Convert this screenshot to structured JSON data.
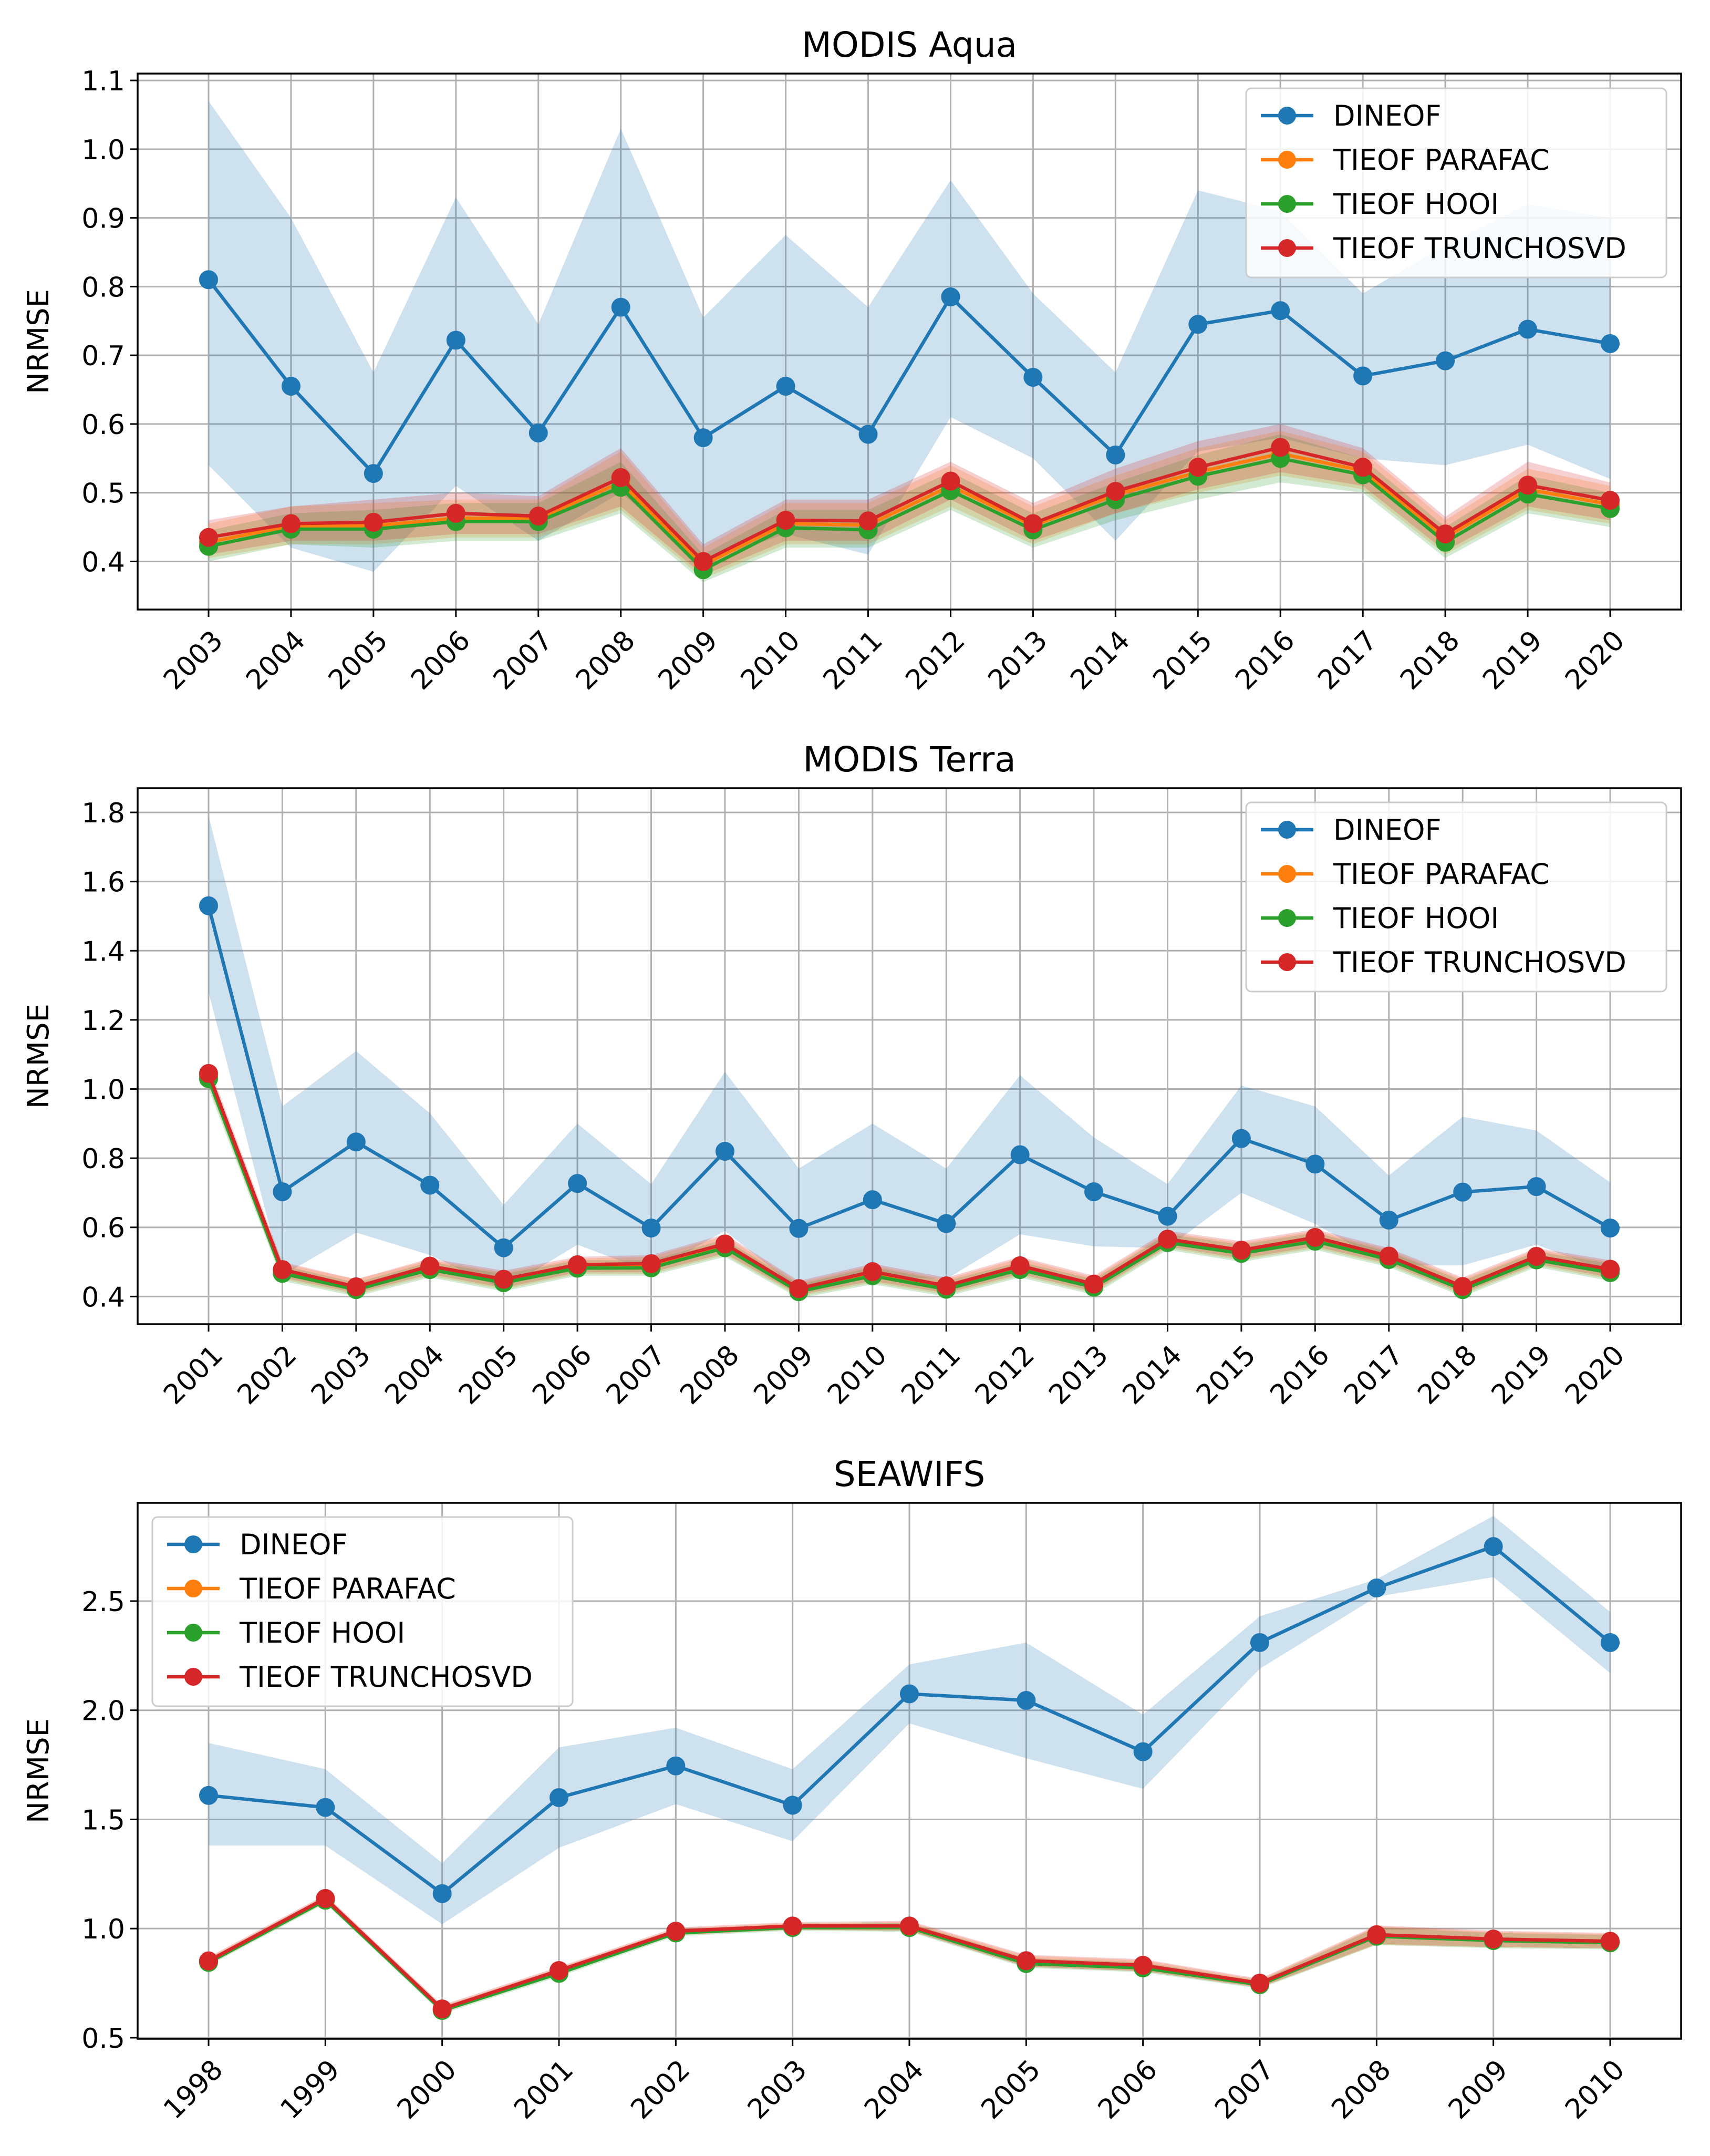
{
  "chart_data": [
    {
      "type": "line",
      "title": "MODIS Aqua",
      "xlabel": "",
      "ylabel": "NRMSE",
      "ylim": [
        0.33,
        1.11
      ],
      "yticks": [
        0.4,
        0.5,
        0.6,
        0.7,
        0.8,
        0.9,
        1.0,
        1.1
      ],
      "grid": true,
      "legend_position": "top-right",
      "categories": [
        "2003",
        "2004",
        "2005",
        "2006",
        "2007",
        "2008",
        "2009",
        "2010",
        "2011",
        "2012",
        "2013",
        "2014",
        "2015",
        "2016",
        "2017",
        "2018",
        "2019",
        "2020"
      ],
      "series": [
        {
          "name": "DINEOF",
          "color": "#1f77b4",
          "values": [
            0.81,
            0.655,
            0.528,
            0.722,
            0.587,
            0.77,
            0.58,
            0.655,
            0.585,
            0.785,
            0.668,
            0.555,
            0.745,
            0.765,
            0.67,
            0.692,
            0.738,
            0.717
          ],
          "band_low": [
            0.54,
            0.42,
            0.385,
            0.51,
            0.43,
            0.5,
            0.4,
            0.44,
            0.41,
            0.61,
            0.55,
            0.43,
            0.56,
            0.58,
            0.55,
            0.54,
            0.57,
            0.52
          ],
          "band_high": [
            1.07,
            0.9,
            0.675,
            0.93,
            0.745,
            1.03,
            0.755,
            0.875,
            0.77,
            0.955,
            0.79,
            0.675,
            0.94,
            0.91,
            0.79,
            0.86,
            0.92,
            0.9
          ]
        },
        {
          "name": "TIEOF PARAFAC",
          "color": "#ff7f0e",
          "values": [
            0.428,
            0.452,
            0.452,
            0.463,
            0.463,
            0.515,
            0.395,
            0.455,
            0.453,
            0.51,
            0.452,
            0.497,
            0.53,
            0.557,
            0.532,
            0.435,
            0.505,
            0.483
          ],
          "band_low": [
            0.405,
            0.425,
            0.425,
            0.435,
            0.435,
            0.475,
            0.375,
            0.425,
            0.425,
            0.48,
            0.425,
            0.47,
            0.5,
            0.525,
            0.505,
            0.41,
            0.475,
            0.455
          ],
          "band_high": [
            0.455,
            0.48,
            0.485,
            0.49,
            0.49,
            0.56,
            0.42,
            0.485,
            0.485,
            0.54,
            0.48,
            0.525,
            0.565,
            0.59,
            0.56,
            0.46,
            0.535,
            0.51
          ]
        },
        {
          "name": "TIEOF HOOI",
          "color": "#2ca02c",
          "values": [
            0.422,
            0.447,
            0.447,
            0.458,
            0.458,
            0.508,
            0.388,
            0.449,
            0.446,
            0.503,
            0.446,
            0.49,
            0.524,
            0.55,
            0.526,
            0.428,
            0.498,
            0.477
          ],
          "band_low": [
            0.4,
            0.425,
            0.42,
            0.43,
            0.43,
            0.47,
            0.37,
            0.42,
            0.42,
            0.475,
            0.42,
            0.46,
            0.49,
            0.515,
            0.5,
            0.405,
            0.47,
            0.45
          ],
          "band_high": [
            0.445,
            0.47,
            0.475,
            0.485,
            0.485,
            0.545,
            0.41,
            0.475,
            0.475,
            0.53,
            0.47,
            0.515,
            0.555,
            0.585,
            0.55,
            0.45,
            0.525,
            0.5
          ]
        },
        {
          "name": "TIEOF TRUNCHOSVD",
          "color": "#d62728",
          "values": [
            0.435,
            0.455,
            0.457,
            0.47,
            0.466,
            0.522,
            0.4,
            0.46,
            0.459,
            0.517,
            0.455,
            0.502,
            0.537,
            0.566,
            0.537,
            0.44,
            0.511,
            0.489
          ],
          "band_low": [
            0.41,
            0.43,
            0.43,
            0.44,
            0.44,
            0.48,
            0.38,
            0.43,
            0.43,
            0.49,
            0.43,
            0.47,
            0.505,
            0.53,
            0.51,
            0.415,
            0.48,
            0.46
          ],
          "band_high": [
            0.46,
            0.48,
            0.49,
            0.5,
            0.495,
            0.565,
            0.425,
            0.49,
            0.49,
            0.545,
            0.485,
            0.535,
            0.575,
            0.6,
            0.565,
            0.465,
            0.545,
            0.515
          ]
        }
      ]
    },
    {
      "type": "line",
      "title": "MODIS Terra",
      "xlabel": "",
      "ylabel": "NRMSE",
      "ylim": [
        0.32,
        1.87
      ],
      "yticks": [
        0.4,
        0.6,
        0.8,
        1.0,
        1.2,
        1.4,
        1.6,
        1.8
      ],
      "grid": true,
      "legend_position": "top-right",
      "categories": [
        "2001",
        "2002",
        "2003",
        "2004",
        "2005",
        "2006",
        "2007",
        "2008",
        "2009",
        "2010",
        "2011",
        "2012",
        "2013",
        "2014",
        "2015",
        "2016",
        "2017",
        "2018",
        "2019",
        "2020"
      ],
      "series": [
        {
          "name": "DINEOF",
          "color": "#1f77b4",
          "values": [
            1.53,
            0.703,
            0.847,
            0.722,
            0.541,
            0.727,
            0.598,
            0.82,
            0.597,
            0.68,
            0.611,
            0.81,
            0.703,
            0.632,
            0.857,
            0.783,
            0.621,
            0.702,
            0.718,
            0.598
          ],
          "band_low": [
            1.28,
            0.46,
            0.585,
            0.52,
            0.42,
            0.55,
            0.47,
            0.59,
            0.42,
            0.46,
            0.45,
            0.58,
            0.545,
            0.54,
            0.7,
            0.61,
            0.49,
            0.49,
            0.55,
            0.47
          ],
          "band_high": [
            1.79,
            0.95,
            1.11,
            0.93,
            0.665,
            0.9,
            0.725,
            1.05,
            0.77,
            0.9,
            0.77,
            1.04,
            0.86,
            0.725,
            1.01,
            0.95,
            0.75,
            0.92,
            0.88,
            0.73
          ]
        },
        {
          "name": "TIEOF PARAFAC",
          "color": "#ff7f0e",
          "values": [
            1.035,
            0.473,
            0.425,
            0.483,
            0.445,
            0.488,
            0.49,
            0.548,
            0.42,
            0.467,
            0.427,
            0.485,
            0.432,
            0.562,
            0.53,
            0.567,
            0.513,
            0.425,
            0.512,
            0.475
          ],
          "band_low": [
            1.01,
            0.45,
            0.405,
            0.46,
            0.42,
            0.465,
            0.465,
            0.52,
            0.4,
            0.44,
            0.405,
            0.46,
            0.41,
            0.54,
            0.505,
            0.54,
            0.49,
            0.405,
            0.49,
            0.45
          ],
          "band_high": [
            1.06,
            0.495,
            0.45,
            0.505,
            0.47,
            0.51,
            0.515,
            0.575,
            0.44,
            0.49,
            0.45,
            0.51,
            0.455,
            0.585,
            0.555,
            0.59,
            0.535,
            0.45,
            0.535,
            0.5
          ]
        },
        {
          "name": "TIEOF HOOI",
          "color": "#2ca02c",
          "values": [
            1.03,
            0.467,
            0.42,
            0.478,
            0.44,
            0.482,
            0.483,
            0.541,
            0.414,
            0.46,
            0.421,
            0.478,
            0.427,
            0.556,
            0.525,
            0.56,
            0.507,
            0.42,
            0.506,
            0.469
          ],
          "band_low": [
            1.0,
            0.445,
            0.4,
            0.455,
            0.415,
            0.46,
            0.46,
            0.515,
            0.395,
            0.435,
            0.4,
            0.455,
            0.405,
            0.535,
            0.5,
            0.535,
            0.485,
            0.4,
            0.485,
            0.445
          ],
          "band_high": [
            1.055,
            0.49,
            0.44,
            0.5,
            0.465,
            0.505,
            0.505,
            0.565,
            0.435,
            0.485,
            0.445,
            0.5,
            0.45,
            0.58,
            0.55,
            0.585,
            0.53,
            0.445,
            0.53,
            0.495
          ]
        },
        {
          "name": "TIEOF TRUNCHOSVD",
          "color": "#d62728",
          "values": [
            1.045,
            0.478,
            0.428,
            0.488,
            0.45,
            0.492,
            0.495,
            0.552,
            0.423,
            0.472,
            0.431,
            0.489,
            0.436,
            0.566,
            0.534,
            0.571,
            0.517,
            0.429,
            0.516,
            0.479
          ],
          "band_low": [
            1.02,
            0.455,
            0.41,
            0.465,
            0.425,
            0.47,
            0.47,
            0.525,
            0.405,
            0.445,
            0.41,
            0.465,
            0.415,
            0.545,
            0.51,
            0.545,
            0.495,
            0.41,
            0.495,
            0.455
          ],
          "band_high": [
            1.07,
            0.5,
            0.45,
            0.51,
            0.475,
            0.515,
            0.52,
            0.58,
            0.445,
            0.495,
            0.455,
            0.515,
            0.46,
            0.59,
            0.56,
            0.595,
            0.54,
            0.455,
            0.54,
            0.505
          ]
        }
      ]
    },
    {
      "type": "line",
      "title": "SEAWIFS",
      "xlabel": "",
      "ylabel": "NRMSE",
      "ylim": [
        0.495,
        2.95
      ],
      "yticks": [
        0.5,
        1.0,
        1.5,
        2.0,
        2.5
      ],
      "yticklabels": [
        "0.5",
        "1.0",
        "1.5",
        "2.0",
        "2.5"
      ],
      "grid": true,
      "legend_position": "top-left",
      "categories": [
        "1998",
        "1999",
        "2000",
        "2001",
        "2002",
        "2003",
        "2004",
        "2005",
        "2006",
        "2007",
        "2008",
        "2009",
        "2010"
      ],
      "series": [
        {
          "name": "DINEOF",
          "color": "#1f77b4",
          "values": [
            1.61,
            1.555,
            1.16,
            1.6,
            1.745,
            1.565,
            2.075,
            2.045,
            1.81,
            2.31,
            2.56,
            2.75,
            2.31
          ],
          "band_low": [
            1.38,
            1.38,
            1.02,
            1.37,
            1.57,
            1.4,
            1.94,
            1.78,
            1.64,
            2.19,
            2.52,
            2.61,
            2.17
          ],
          "band_high": [
            1.85,
            1.73,
            1.3,
            1.83,
            1.92,
            1.73,
            2.21,
            2.31,
            1.98,
            2.43,
            2.6,
            2.89,
            2.45
          ]
        },
        {
          "name": "TIEOF PARAFAC",
          "color": "#ff7f0e",
          "values": [
            0.85,
            1.135,
            0.63,
            0.805,
            0.985,
            1.01,
            1.01,
            0.85,
            0.83,
            0.748,
            0.97,
            0.95,
            0.94
          ],
          "band_low": [
            0.835,
            1.12,
            0.615,
            0.79,
            0.97,
            0.995,
            0.99,
            0.825,
            0.805,
            0.73,
            0.925,
            0.915,
            0.91
          ],
          "band_high": [
            0.865,
            1.15,
            0.645,
            0.82,
            1.0,
            1.025,
            1.03,
            0.875,
            0.855,
            0.765,
            1.01,
            0.985,
            0.975
          ]
        },
        {
          "name": "TIEOF HOOI",
          "color": "#2ca02c",
          "values": [
            0.845,
            1.13,
            0.625,
            0.795,
            0.98,
            1.005,
            1.005,
            0.84,
            0.82,
            0.743,
            0.965,
            0.945,
            0.935
          ],
          "band_low": [
            0.83,
            1.115,
            0.61,
            0.78,
            0.965,
            0.99,
            0.985,
            0.82,
            0.8,
            0.725,
            0.925,
            0.91,
            0.905
          ],
          "band_high": [
            0.86,
            1.145,
            0.64,
            0.81,
            0.995,
            1.02,
            1.025,
            0.865,
            0.845,
            0.76,
            1.005,
            0.98,
            0.97
          ]
        },
        {
          "name": "TIEOF TRUNCHOSVD",
          "color": "#d62728",
          "values": [
            0.852,
            1.138,
            0.632,
            0.808,
            0.988,
            1.012,
            1.012,
            0.853,
            0.832,
            0.75,
            0.972,
            0.952,
            0.942
          ],
          "band_low": [
            0.835,
            1.12,
            0.615,
            0.79,
            0.97,
            0.995,
            0.99,
            0.825,
            0.805,
            0.73,
            0.93,
            0.915,
            0.91
          ],
          "band_high": [
            0.87,
            1.155,
            0.65,
            0.825,
            1.005,
            1.03,
            1.035,
            0.88,
            0.86,
            0.77,
            1.015,
            0.99,
            0.98
          ]
        }
      ]
    }
  ]
}
